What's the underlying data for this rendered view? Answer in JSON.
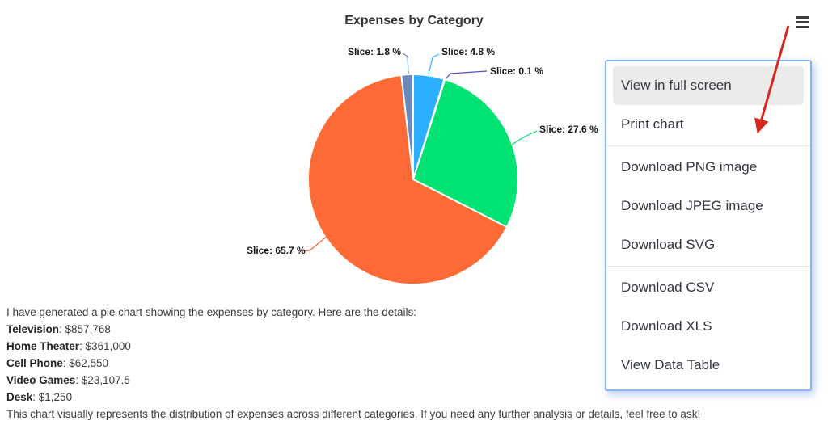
{
  "chart": {
    "title": "Expenses by Category",
    "context_menu_icon": "hamburger-icon"
  },
  "chart_data": {
    "type": "pie",
    "title": "Expenses by Category",
    "legend_position": "none",
    "start_angle_deg": 0,
    "data_label_format": "Slice: {percentage} %",
    "slices": [
      {
        "name": "Cell Phone",
        "value": 62550,
        "percent": 4.8,
        "label": "Slice: 4.8 %",
        "color": "#2caffe"
      },
      {
        "name": "Desk",
        "value": 1250,
        "percent": 0.1,
        "label": "Slice: 0.1 %",
        "color": "#544fc5"
      },
      {
        "name": "Home Theater",
        "value": 361000,
        "percent": 27.6,
        "label": "Slice: 27.6 %",
        "color": "#00e272"
      },
      {
        "name": "Television",
        "value": 857768,
        "percent": 65.7,
        "label": "Slice: 65.7 %",
        "color": "#fe6a35"
      },
      {
        "name": "Video Games",
        "value": 23107.5,
        "percent": 1.8,
        "label": "Slice: 1.8 %",
        "color": "#6b8abc"
      }
    ]
  },
  "export_menu": {
    "items": [
      "View in full screen",
      "Print chart",
      "---",
      "Download PNG image",
      "Download JPEG image",
      "Download SVG",
      "---",
      "Download CSV",
      "Download XLS",
      "View Data Table"
    ],
    "hovered_item": "View in full screen",
    "border_color": "#8ab4ef",
    "hover_bg": "#ebebeb"
  },
  "annotation_arrow": {
    "color": "#d7261b",
    "points_to": "Download PNG image"
  },
  "message": {
    "intro": "I have generated a pie chart showing the expenses by category. Here are the details:",
    "details": [
      {
        "label": "Television",
        "value": "$857,768"
      },
      {
        "label": "Home Theater",
        "value": "$361,000"
      },
      {
        "label": "Cell Phone",
        "value": "$62,550"
      },
      {
        "label": "Video Games",
        "value": "$23,107.5"
      },
      {
        "label": "Desk",
        "value": "$1,250"
      }
    ],
    "outro": "This chart visually represents the distribution of expenses across different categories. If you need any further analysis or details, feel free to ask!"
  }
}
